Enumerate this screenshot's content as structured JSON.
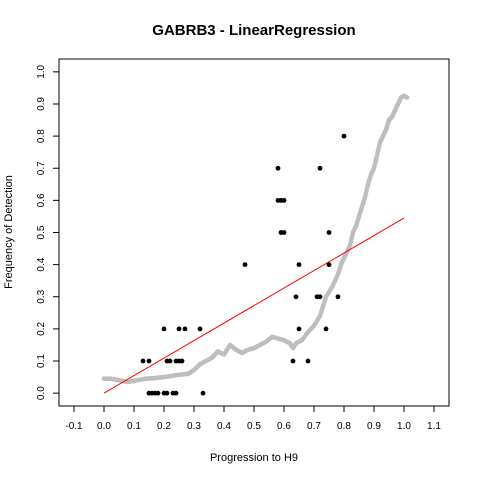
{
  "chart_data": {
    "type": "scatter",
    "title": "GABRB3 - LinearRegression",
    "xlabel": "Progression to H9",
    "ylabel": "Frequency of Detection",
    "xlim": [
      -0.15,
      1.15
    ],
    "ylim": [
      -0.04,
      1.04
    ],
    "x_ticks": [
      "-0.1",
      "0.0",
      "0.1",
      "0.2",
      "0.3",
      "0.4",
      "0.5",
      "0.6",
      "0.7",
      "0.8",
      "0.9",
      "1.0",
      "1.1"
    ],
    "x_tick_values": [
      -0.1,
      0.0,
      0.1,
      0.2,
      0.3,
      0.4,
      0.5,
      0.6,
      0.7,
      0.8,
      0.9,
      1.0,
      1.1
    ],
    "y_ticks": [
      "0.0",
      "0.1",
      "0.2",
      "0.3",
      "0.4",
      "0.5",
      "0.6",
      "0.7",
      "0.8",
      "0.9",
      "1.0"
    ],
    "y_tick_values": [
      0.0,
      0.1,
      0.2,
      0.3,
      0.4,
      0.5,
      0.6,
      0.7,
      0.8,
      0.9,
      1.0
    ],
    "series": [
      {
        "kind": "points",
        "color": "#000000",
        "points": [
          [
            0.13,
            0.1
          ],
          [
            0.15,
            0.1
          ],
          [
            0.2,
            0.2
          ],
          [
            0.25,
            0.2
          ],
          [
            0.27,
            0.2
          ],
          [
            0.32,
            0.2
          ],
          [
            0.21,
            0.1
          ],
          [
            0.22,
            0.1
          ],
          [
            0.24,
            0.1
          ],
          [
            0.25,
            0.1
          ],
          [
            0.26,
            0.1
          ],
          [
            0.15,
            0.0
          ],
          [
            0.16,
            0.0
          ],
          [
            0.17,
            0.0
          ],
          [
            0.18,
            0.0
          ],
          [
            0.2,
            0.0
          ],
          [
            0.21,
            0.0
          ],
          [
            0.23,
            0.0
          ],
          [
            0.24,
            0.0
          ],
          [
            0.33,
            0.0
          ],
          [
            0.47,
            0.4
          ],
          [
            0.58,
            0.7
          ],
          [
            0.58,
            0.6
          ],
          [
            0.59,
            0.6
          ],
          [
            0.6,
            0.6
          ],
          [
            0.59,
            0.5
          ],
          [
            0.6,
            0.5
          ],
          [
            0.64,
            0.3
          ],
          [
            0.65,
            0.4
          ],
          [
            0.65,
            0.2
          ],
          [
            0.63,
            0.1
          ],
          [
            0.68,
            0.1
          ],
          [
            0.72,
            0.7
          ],
          [
            0.71,
            0.3
          ],
          [
            0.72,
            0.3
          ],
          [
            0.75,
            0.5
          ],
          [
            0.75,
            0.4
          ],
          [
            0.74,
            0.2
          ],
          [
            0.78,
            0.3
          ],
          [
            0.8,
            0.8
          ]
        ]
      },
      {
        "kind": "smoothed",
        "color": "#bebebe",
        "points": [
          [
            0.0,
            0.045
          ],
          [
            0.02,
            0.045
          ],
          [
            0.04,
            0.042
          ],
          [
            0.06,
            0.038
          ],
          [
            0.08,
            0.035
          ],
          [
            0.1,
            0.038
          ],
          [
            0.12,
            0.042
          ],
          [
            0.14,
            0.045
          ],
          [
            0.16,
            0.046
          ],
          [
            0.18,
            0.048
          ],
          [
            0.2,
            0.05
          ],
          [
            0.22,
            0.053
          ],
          [
            0.24,
            0.056
          ],
          [
            0.26,
            0.058
          ],
          [
            0.28,
            0.06
          ],
          [
            0.3,
            0.072
          ],
          [
            0.32,
            0.09
          ],
          [
            0.34,
            0.1
          ],
          [
            0.36,
            0.11
          ],
          [
            0.37,
            0.12
          ],
          [
            0.38,
            0.13
          ],
          [
            0.4,
            0.12
          ],
          [
            0.42,
            0.15
          ],
          [
            0.44,
            0.135
          ],
          [
            0.46,
            0.125
          ],
          [
            0.48,
            0.135
          ],
          [
            0.5,
            0.14
          ],
          [
            0.52,
            0.15
          ],
          [
            0.54,
            0.16
          ],
          [
            0.56,
            0.175
          ],
          [
            0.58,
            0.17
          ],
          [
            0.6,
            0.165
          ],
          [
            0.62,
            0.155
          ],
          [
            0.63,
            0.14
          ],
          [
            0.64,
            0.155
          ],
          [
            0.66,
            0.165
          ],
          [
            0.68,
            0.19
          ],
          [
            0.7,
            0.21
          ],
          [
            0.72,
            0.24
          ],
          [
            0.73,
            0.27
          ],
          [
            0.74,
            0.3
          ],
          [
            0.76,
            0.33
          ],
          [
            0.78,
            0.37
          ],
          [
            0.79,
            0.4
          ],
          [
            0.8,
            0.42
          ],
          [
            0.81,
            0.44
          ],
          [
            0.82,
            0.46
          ],
          [
            0.83,
            0.5
          ],
          [
            0.84,
            0.52
          ],
          [
            0.85,
            0.55
          ],
          [
            0.86,
            0.58
          ],
          [
            0.87,
            0.61
          ],
          [
            0.88,
            0.65
          ],
          [
            0.89,
            0.68
          ],
          [
            0.9,
            0.7
          ],
          [
            0.91,
            0.74
          ],
          [
            0.92,
            0.78
          ],
          [
            0.93,
            0.8
          ],
          [
            0.94,
            0.82
          ],
          [
            0.95,
            0.85
          ],
          [
            0.96,
            0.86
          ],
          [
            0.97,
            0.88
          ],
          [
            0.98,
            0.9
          ],
          [
            0.99,
            0.92
          ],
          [
            1.0,
            0.925
          ],
          [
            1.01,
            0.92
          ]
        ]
      },
      {
        "kind": "regression",
        "color": "#ff0000",
        "points": [
          [
            0.0,
            0.0
          ],
          [
            1.0,
            0.545
          ]
        ]
      }
    ]
  }
}
